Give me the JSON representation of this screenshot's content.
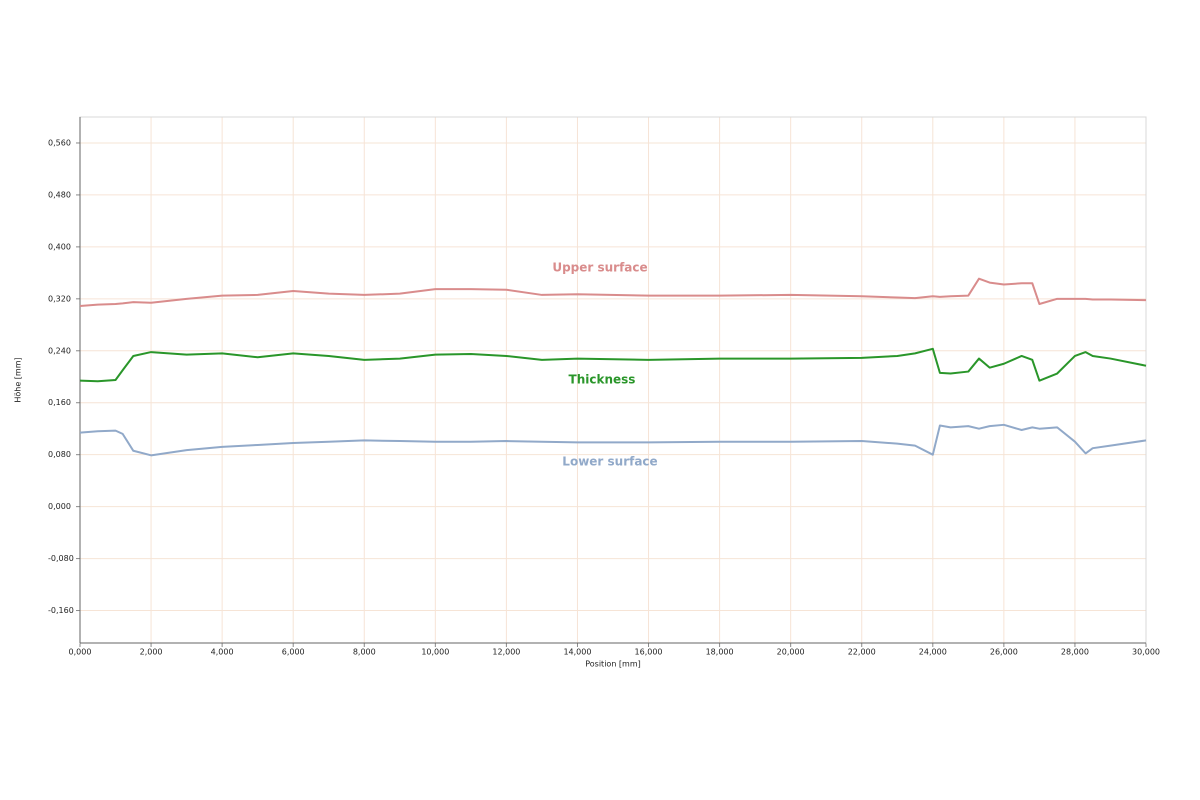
{
  "chart_data": {
    "type": "line",
    "x_label": "Position [mm]",
    "y_label": "Höhe [mm]",
    "x": [
      0,
      0.5,
      1,
      1.2,
      1.5,
      2,
      3,
      4,
      5,
      6,
      7,
      8,
      9,
      10,
      11,
      12,
      13,
      14,
      16,
      18,
      20,
      22,
      23,
      23.5,
      24,
      24.2,
      24.5,
      25,
      25.3,
      25.6,
      26,
      26.5,
      26.8,
      27,
      27.5,
      28,
      28.3,
      28.5,
      29,
      30
    ],
    "series": [
      {
        "name": "Upper surface",
        "color": "#d98c8c",
        "values": [
          0.309,
          0.311,
          0.312,
          0.313,
          0.315,
          0.314,
          0.32,
          0.325,
          0.326,
          0.332,
          0.328,
          0.326,
          0.328,
          0.335,
          0.335,
          0.334,
          0.326,
          0.327,
          0.325,
          0.325,
          0.326,
          0.324,
          0.322,
          0.321,
          0.324,
          0.323,
          0.324,
          0.325,
          0.351,
          0.345,
          0.342,
          0.344,
          0.344,
          0.312,
          0.32,
          0.32,
          0.32,
          0.319,
          0.319,
          0.318
        ]
      },
      {
        "name": "Thickness",
        "color": "#2a962a",
        "values": [
          0.194,
          0.193,
          0.195,
          0.21,
          0.232,
          0.238,
          0.234,
          0.236,
          0.23,
          0.236,
          0.232,
          0.226,
          0.228,
          0.234,
          0.235,
          0.232,
          0.226,
          0.228,
          0.226,
          0.228,
          0.228,
          0.229,
          0.232,
          0.236,
          0.243,
          0.206,
          0.205,
          0.208,
          0.228,
          0.214,
          0.22,
          0.232,
          0.226,
          0.194,
          0.205,
          0.232,
          0.238,
          0.232,
          0.228,
          0.217
        ]
      },
      {
        "name": "Lower surface",
        "color": "#91a9c9",
        "values": [
          0.114,
          0.116,
          0.117,
          0.112,
          0.086,
          0.079,
          0.087,
          0.092,
          0.095,
          0.098,
          0.1,
          0.102,
          0.101,
          0.1,
          0.1,
          0.101,
          0.1,
          0.099,
          0.099,
          0.1,
          0.1,
          0.101,
          0.097,
          0.094,
          0.08,
          0.125,
          0.122,
          0.124,
          0.12,
          0.124,
          0.126,
          0.118,
          0.122,
          0.12,
          0.122,
          0.1,
          0.082,
          0.09,
          0.094,
          0.102
        ]
      }
    ],
    "xlim": [
      0,
      30
    ],
    "xticks": [
      {
        "value": 0,
        "label": "0,000"
      },
      {
        "value": 2,
        "label": "2,000"
      },
      {
        "value": 4,
        "label": "4,000"
      },
      {
        "value": 6,
        "label": "6,000"
      },
      {
        "value": 8,
        "label": "8,000"
      },
      {
        "value": 10,
        "label": "10,000"
      },
      {
        "value": 12,
        "label": "12,000"
      },
      {
        "value": 14,
        "label": "14,000"
      },
      {
        "value": 16,
        "label": "16,000"
      },
      {
        "value": 18,
        "label": "18,000"
      },
      {
        "value": 20,
        "label": "20,000"
      },
      {
        "value": 22,
        "label": "22,000"
      },
      {
        "value": 24,
        "label": "24,000"
      },
      {
        "value": 26,
        "label": "26,000"
      },
      {
        "value": 28,
        "label": "28,000"
      },
      {
        "value": 30,
        "label": "30,000"
      }
    ],
    "ylim": [
      -0.21,
      0.6
    ],
    "yticks": [
      {
        "value": -0.16,
        "label": "-0,160"
      },
      {
        "value": -0.08,
        "label": "-0,080"
      },
      {
        "value": 0,
        "label": "0,000"
      },
      {
        "value": 0.08,
        "label": "0,080"
      },
      {
        "value": 0.16,
        "label": "0,160"
      },
      {
        "value": 0.24,
        "label": "0,240"
      },
      {
        "value": 0.32,
        "label": "0,320"
      },
      {
        "value": 0.4,
        "label": "0,400"
      },
      {
        "value": 0.48,
        "label": "0,480"
      },
      {
        "value": 0.56,
        "label": "0,560"
      }
    ],
    "grid": true
  }
}
